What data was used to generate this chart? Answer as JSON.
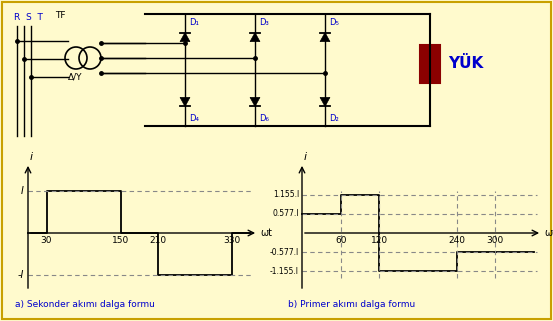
{
  "bg_color": "#FFFACD",
  "border_color": "#C8A000",
  "circuit_color": "#000000",
  "diode_label_color": "#0000CC",
  "yuk_color": "#8B0000",
  "wave_color": "#000000",
  "dash_color": "#888888",
  "caption_color": "#0000CC",
  "fig_w": 5.53,
  "fig_h": 3.21,
  "dpi": 100,
  "sec_label": "a) Sekonder akımı dalga formu",
  "pri_label": "b) Primer akımı dalga formu",
  "yuk_text": "YÜK",
  "rst_text": "R  S  T",
  "tf_text": "TF",
  "delta_y_text": "Δ/Y"
}
